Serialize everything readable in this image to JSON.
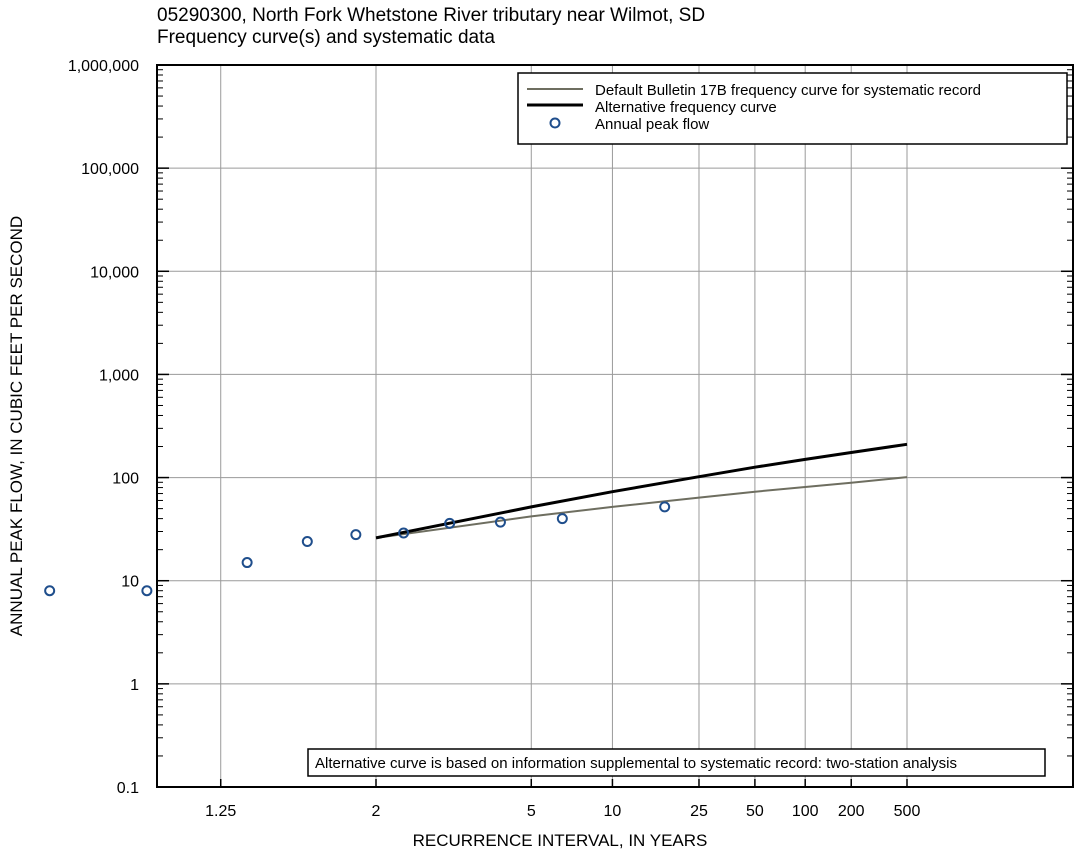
{
  "chart_data": {
    "type": "line",
    "title": "05290300, North Fork Whetstone River tributary near Wilmot, SD",
    "subtitle": "Frequency curve(s) and systematic data",
    "xlabel": "RECURRENCE INTERVAL, IN YEARS",
    "ylabel": "ANNUAL PEAK FLOW, IN CUBIC FEET PER SECOND",
    "x_scale": "probability (annual exceedance)",
    "y_scale": "log",
    "ylim": [
      0.1,
      1000000
    ],
    "x_ticks": [
      1.25,
      2,
      5,
      10,
      25,
      50,
      100,
      200,
      500
    ],
    "x_tick_labels": [
      "1.25",
      "2",
      "5",
      "10",
      "25",
      "50",
      "100",
      "200",
      "500"
    ],
    "y_ticks": [
      0.1,
      1,
      10,
      100,
      1000,
      10000,
      100000,
      1000000
    ],
    "y_tick_labels": [
      "0.1",
      "1",
      "10",
      "100",
      "1,000",
      "10,000",
      "100,000",
      "1,000,000"
    ],
    "grid": true,
    "legend_position": "top-right",
    "series": [
      {
        "name": "Default Bulletin 17B frequency curve for systematic record",
        "kind": "line",
        "color": "#6e6e60",
        "x": [
          2,
          5,
          10,
          25,
          50,
          100,
          200,
          500
        ],
        "y": [
          26,
          42,
          52,
          64,
          73,
          81,
          89,
          101
        ]
      },
      {
        "name": "Alternative frequency curve",
        "kind": "line",
        "color": "#000000",
        "x": [
          2,
          5,
          10,
          25,
          50,
          100,
          200,
          500
        ],
        "y": [
          26,
          52,
          73,
          102,
          126,
          150,
          175,
          210
        ]
      },
      {
        "name": "Annual peak flow",
        "kind": "scatter",
        "color": "#1f4e8c",
        "x": [
          1.04,
          1.12,
          1.32,
          1.55,
          1.84,
          2.27,
          2.9,
          4.0,
          6.4,
          17.0
        ],
        "y": [
          8,
          8,
          15,
          24,
          28,
          29,
          36,
          37,
          40,
          52
        ]
      }
    ],
    "annotation": "Alternative curve is based on information supplemental to systematic record: two-station analysis"
  }
}
